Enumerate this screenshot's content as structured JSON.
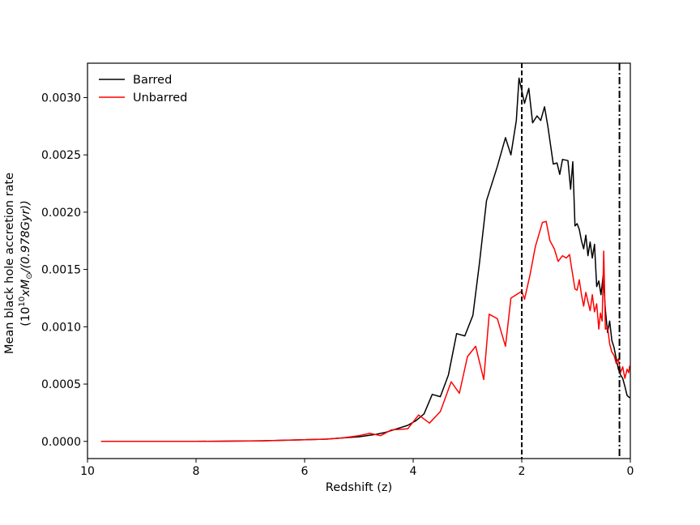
{
  "chart_data": {
    "type": "line",
    "xlabel": "Redshift (z)",
    "ylabel_line1": "Mean black hole accretion rate",
    "ylabel_line2": "(10",
    "ylabel_sup": "10",
    "ylabel_rest": "xM",
    "ylabel_sub": "⊙",
    "ylabel_tail": "/(0.978Gyr))",
    "xlim": [
      10,
      0
    ],
    "ylim": [
      -0.00015,
      0.0033
    ],
    "xticks": [
      10,
      8,
      6,
      4,
      2,
      0
    ],
    "xtick_labels": [
      "10",
      "8",
      "6",
      "4",
      "2",
      "0"
    ],
    "yticks": [
      0.0,
      0.0005,
      0.001,
      0.0015,
      0.002,
      0.0025,
      0.003
    ],
    "ytick_labels": [
      "0.0000",
      "0.0005",
      "0.0010",
      "0.0015",
      "0.0020",
      "0.0025",
      "0.0030"
    ],
    "legend_position": "top-left",
    "vlines": [
      {
        "x": 2.0,
        "style": "dashed",
        "color": "#000000"
      },
      {
        "x": 0.2,
        "style": "dashdot",
        "color": "#000000"
      }
    ],
    "series": [
      {
        "name": "Barred",
        "color": "#000000",
        "points": [
          [
            9.75,
            0.0
          ],
          [
            8.0,
            0.0
          ],
          [
            6.8,
            5e-06
          ],
          [
            6.0,
            1.5e-05
          ],
          [
            5.6,
            2e-05
          ],
          [
            5.3,
            3e-05
          ],
          [
            5.0,
            4e-05
          ],
          [
            4.7,
            6e-05
          ],
          [
            4.5,
            8e-05
          ],
          [
            4.3,
            0.00011
          ],
          [
            4.1,
            0.00014
          ],
          [
            3.95,
            0.00018
          ],
          [
            3.8,
            0.00024
          ],
          [
            3.65,
            0.00041
          ],
          [
            3.5,
            0.00039
          ],
          [
            3.35,
            0.00058
          ],
          [
            3.2,
            0.00094
          ],
          [
            3.05,
            0.00092
          ],
          [
            2.9,
            0.0011
          ],
          [
            2.78,
            0.00155
          ],
          [
            2.65,
            0.0021
          ],
          [
            2.45,
            0.0024
          ],
          [
            2.3,
            0.00265
          ],
          [
            2.2,
            0.0025
          ],
          [
            2.1,
            0.0028
          ],
          [
            2.05,
            0.00317
          ],
          [
            1.95,
            0.00295
          ],
          [
            1.87,
            0.00308
          ],
          [
            1.8,
            0.00278
          ],
          [
            1.72,
            0.00284
          ],
          [
            1.65,
            0.0028
          ],
          [
            1.58,
            0.00292
          ],
          [
            1.52,
            0.00275
          ],
          [
            1.42,
            0.00242
          ],
          [
            1.35,
            0.00243
          ],
          [
            1.3,
            0.00233
          ],
          [
            1.25,
            0.00246
          ],
          [
            1.15,
            0.00245
          ],
          [
            1.1,
            0.0022
          ],
          [
            1.06,
            0.00244
          ],
          [
            1.02,
            0.00188
          ],
          [
            0.98,
            0.0019
          ],
          [
            0.94,
            0.00185
          ],
          [
            0.9,
            0.00175
          ],
          [
            0.86,
            0.00168
          ],
          [
            0.82,
            0.0018
          ],
          [
            0.78,
            0.00162
          ],
          [
            0.74,
            0.00174
          ],
          [
            0.7,
            0.0016
          ],
          [
            0.66,
            0.00172
          ],
          [
            0.62,
            0.00135
          ],
          [
            0.58,
            0.0014
          ],
          [
            0.54,
            0.00128
          ],
          [
            0.5,
            0.00145
          ],
          [
            0.46,
            0.00115
          ],
          [
            0.42,
            0.00095
          ],
          [
            0.38,
            0.00105
          ],
          [
            0.34,
            0.00088
          ],
          [
            0.3,
            0.00082
          ],
          [
            0.26,
            0.00072
          ],
          [
            0.22,
            0.00063
          ],
          [
            0.18,
            0.00058
          ],
          [
            0.14,
            0.00055
          ],
          [
            0.1,
            0.00048
          ],
          [
            0.06,
            0.0004
          ],
          [
            0.01,
            0.00038
          ]
        ]
      },
      {
        "name": "Unbarred",
        "color": "#ff0000",
        "points": [
          [
            9.75,
            0.0
          ],
          [
            8.0,
            0.0
          ],
          [
            6.8,
            5e-06
          ],
          [
            6.0,
            1.5e-05
          ],
          [
            5.6,
            2e-05
          ],
          [
            5.3,
            3e-05
          ],
          [
            5.0,
            5e-05
          ],
          [
            4.8,
            7e-05
          ],
          [
            4.6,
            5e-05
          ],
          [
            4.4,
            0.0001
          ],
          [
            4.1,
            0.00011
          ],
          [
            3.9,
            0.00023
          ],
          [
            3.7,
            0.00016
          ],
          [
            3.5,
            0.00026
          ],
          [
            3.3,
            0.00052
          ],
          [
            3.15,
            0.00042
          ],
          [
            3.0,
            0.00074
          ],
          [
            2.85,
            0.00083
          ],
          [
            2.7,
            0.00054
          ],
          [
            2.6,
            0.00111
          ],
          [
            2.45,
            0.00107
          ],
          [
            2.3,
            0.00083
          ],
          [
            2.2,
            0.00125
          ],
          [
            2.1,
            0.00128
          ],
          [
            2.0,
            0.00131
          ],
          [
            1.95,
            0.00124
          ],
          [
            1.85,
            0.00145
          ],
          [
            1.75,
            0.0017
          ],
          [
            1.62,
            0.00191
          ],
          [
            1.55,
            0.00192
          ],
          [
            1.48,
            0.00175
          ],
          [
            1.4,
            0.00168
          ],
          [
            1.33,
            0.00157
          ],
          [
            1.25,
            0.00162
          ],
          [
            1.18,
            0.0016
          ],
          [
            1.12,
            0.00163
          ],
          [
            1.08,
            0.00151
          ],
          [
            1.02,
            0.00133
          ],
          [
            0.98,
            0.00132
          ],
          [
            0.94,
            0.00141
          ],
          [
            0.9,
            0.00128
          ],
          [
            0.86,
            0.00118
          ],
          [
            0.82,
            0.0013
          ],
          [
            0.78,
            0.00122
          ],
          [
            0.74,
            0.00114
          ],
          [
            0.7,
            0.00128
          ],
          [
            0.66,
            0.00113
          ],
          [
            0.62,
            0.0012
          ],
          [
            0.58,
            0.00098
          ],
          [
            0.55,
            0.00112
          ],
          [
            0.52,
            0.00105
          ],
          [
            0.49,
            0.00166
          ],
          [
            0.46,
            0.00098
          ],
          [
            0.42,
            0.001
          ],
          [
            0.38,
            0.00085
          ],
          [
            0.34,
            0.00078
          ],
          [
            0.3,
            0.00075
          ],
          [
            0.26,
            0.00068
          ],
          [
            0.22,
            0.00072
          ],
          [
            0.18,
            0.0006
          ],
          [
            0.14,
            0.00065
          ],
          [
            0.1,
            0.00055
          ],
          [
            0.06,
            0.00063
          ],
          [
            0.03,
            0.0006
          ],
          [
            0.01,
            0.00066
          ]
        ]
      }
    ]
  }
}
